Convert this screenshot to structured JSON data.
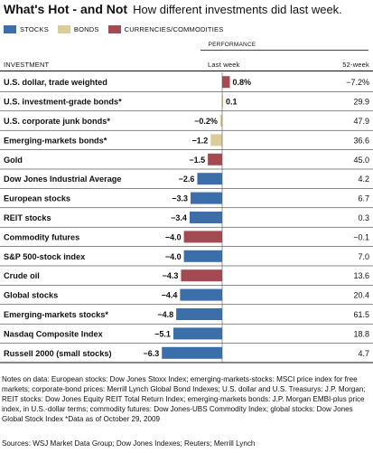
{
  "header": {
    "title": "What's Hot - and Not",
    "subtitle": "How different investments did last week."
  },
  "legend": [
    {
      "label": "STOCKS",
      "color": "#3c6eaa"
    },
    {
      "label": "BONDS",
      "color": "#dbcd9a"
    },
    {
      "label": "CURRENCIES/COMMODITIES",
      "color": "#a34a52"
    }
  ],
  "columns": {
    "group_label": "PERFORMANCE",
    "investment": "INVESTMENT",
    "last_week": "Last week",
    "week52": "52-week"
  },
  "chart_data": {
    "type": "bar",
    "categories": [
      "U.S. dollar, trade weighted",
      "U.S. investment-grade bonds*",
      "U.S. corporate junk bonds*",
      "Emerging-markets bonds*",
      "Gold",
      "Dow Jones Industrial Average",
      "European stocks",
      "REIT stocks",
      "Commodity futures",
      "S&P 500-stock index",
      "Crude oil",
      "Global stocks",
      "Emerging-markets stocks*",
      "Nasdaq Composite Index",
      "Russell 2000 (small stocks)"
    ],
    "values": [
      0.8,
      0.1,
      -0.2,
      -1.2,
      -1.5,
      -2.6,
      -3.3,
      -3.4,
      -4.0,
      -4.0,
      -4.3,
      -4.4,
      -4.8,
      -5.1,
      -6.3
    ],
    "value_labels": [
      "0.8%",
      "0.1",
      "−0.2%",
      "−1.2",
      "−1.5",
      "−2.6",
      "−3.3",
      "−3.4",
      "−4.0",
      "−4.0",
      "−4.3",
      "−4.4",
      "−4.8",
      "−5.1",
      "−6.3"
    ],
    "groups": [
      "currency",
      "bond",
      "bond",
      "bond",
      "currency",
      "stock",
      "stock",
      "stock",
      "currency",
      "stock",
      "currency",
      "stock",
      "stock",
      "stock",
      "stock"
    ],
    "week52": [
      "−7.2%",
      "29.9",
      "47.9",
      "36.6",
      "45.0",
      "4.2",
      "6.7",
      "0.3",
      "−0.1",
      "7.0",
      "13.6",
      "20.4",
      "61.5",
      "18.8",
      "4.7"
    ]
  },
  "notes": "Notes on data: European stocks: Dow Jones Stoxx Index; emerging-markets-stocks: MSCI price index for free markets; corporate-bond prices: Merrill Lynch Global Bond Indexes; U.S. dollar and U.S. Treasurys: J.P. Morgan; REIT stocks: Dow Jones Equity REIT Total Return Index; emerging-markets bonds: J.P. Morgan EMBI-plus price index, in U.S.-dollar terms; commodity futures: Dow Jones-UBS Commodity Index; global stocks: Dow Jones Global Stock Index *Data as of October 29, 2009",
  "sources": "Sources: WSJ Market Data Group; Dow Jones Indexes; Reuters; Merrill Lynch"
}
